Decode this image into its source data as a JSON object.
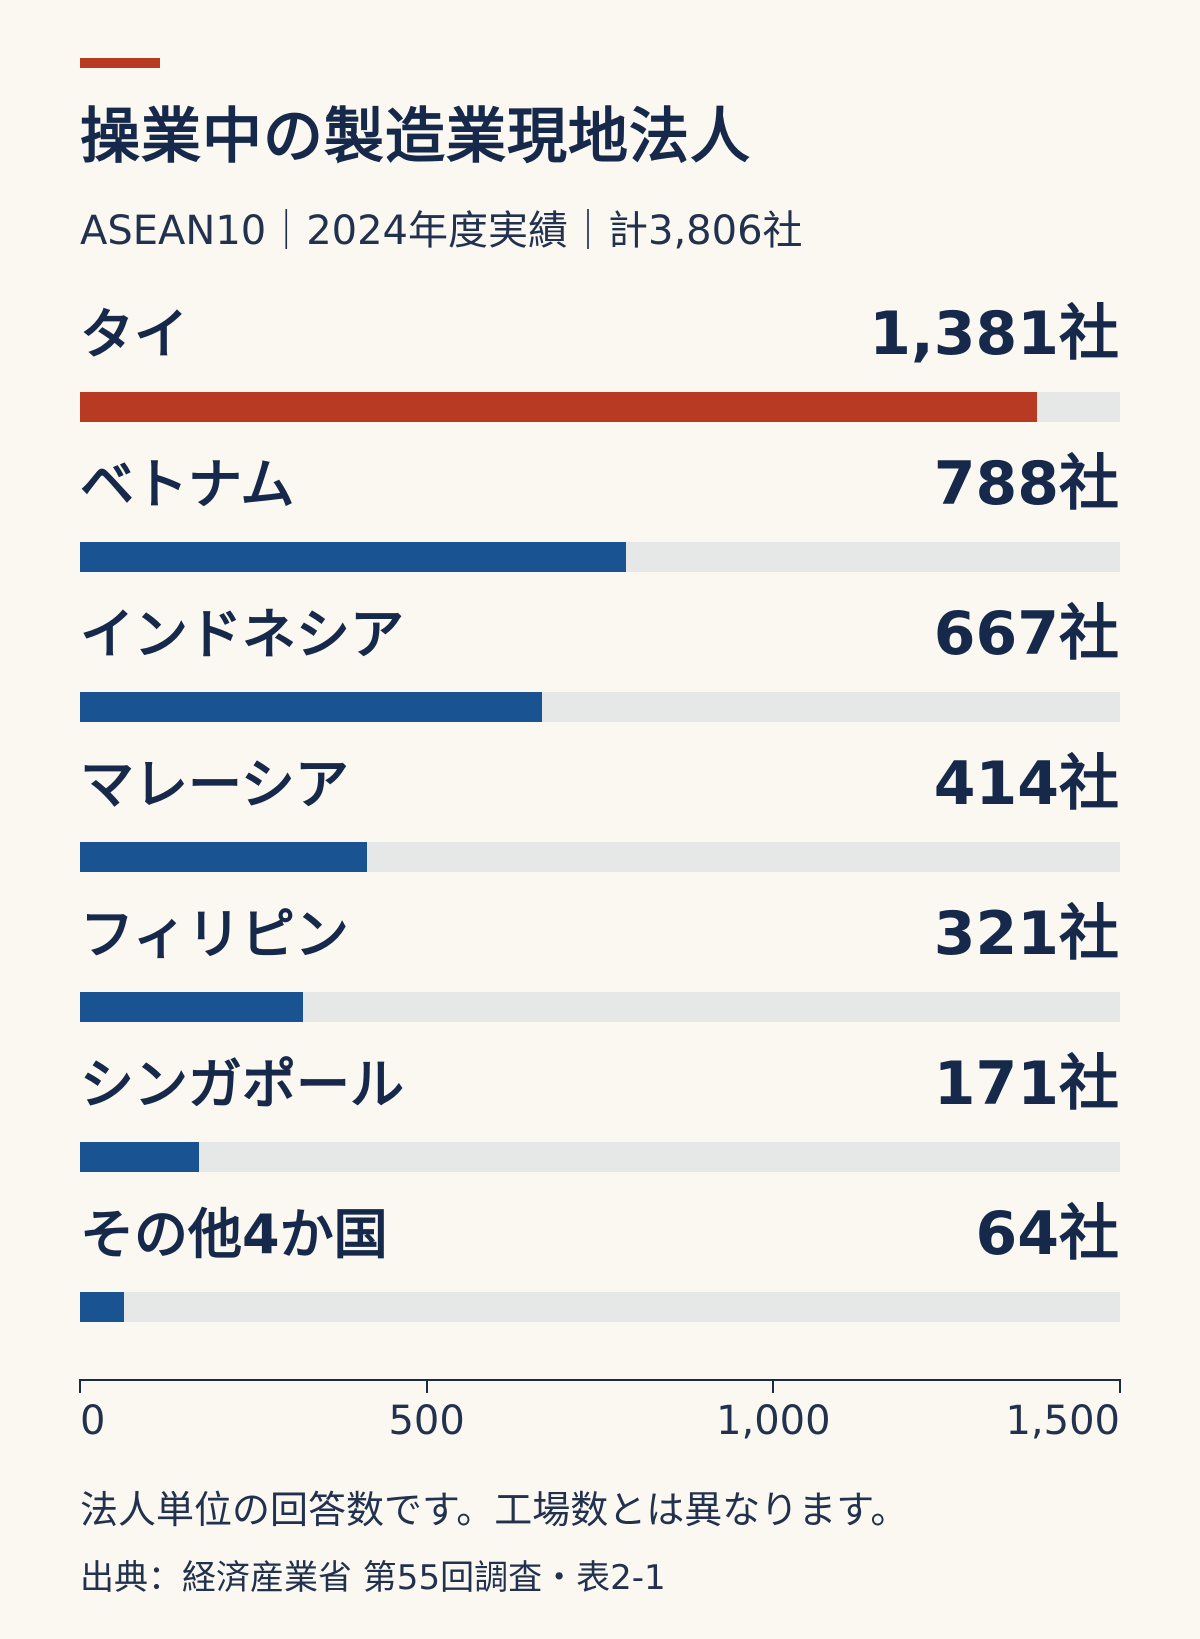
{
  "chart_data": {
    "type": "bar",
    "orientation": "horizontal",
    "title": "操業中の製造業現地法人",
    "subtitle": "ASEAN10｜2024年度実績｜計3,806社",
    "categories": [
      "タイ",
      "ベトナム",
      "インドネシア",
      "マレーシア",
      "フィリピン",
      "シンガポール",
      "その他4か国"
    ],
    "values": [
      1381,
      788,
      667,
      414,
      321,
      171,
      64
    ],
    "value_labels": [
      "1,381社",
      "788社",
      "667社",
      "414社",
      "321社",
      "171社",
      "64社"
    ],
    "xlim": [
      0,
      1500
    ],
    "ticks": [
      "0",
      "500",
      "1,000",
      "1,500"
    ],
    "tick_values": [
      0,
      500,
      1000,
      1500
    ],
    "grid": false,
    "note": "法人単位の回答数です。工場数とは異なります。",
    "source": "出典：経済産業省 第55回調査・表2-1"
  },
  "colors": {
    "highlight": "#b83a22",
    "bar": "#1a5391",
    "track": "#e6e8e7",
    "text": "#16294a",
    "background": "#faf8f1"
  }
}
